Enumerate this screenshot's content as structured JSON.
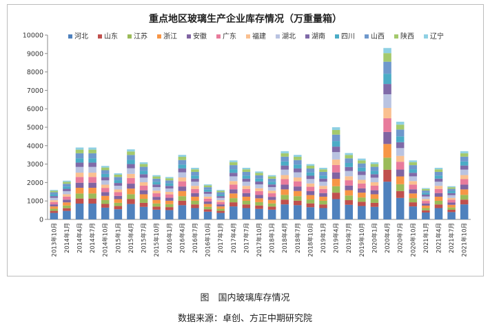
{
  "chart_data": {
    "type": "bar",
    "stacked": true,
    "title": "重点地区玻璃生产企业库存情况（万重量箱）",
    "ylim": [
      0,
      10000
    ],
    "yticks": [
      0,
      1000,
      2000,
      3000,
      4000,
      5000,
      6000,
      7000,
      8000,
      9000,
      10000
    ],
    "grid": false,
    "legend_position": "top",
    "x": [
      "2013年10月",
      "2014年1月",
      "2014年4月",
      "2014年7月",
      "2014年10月",
      "2015年1月",
      "2015年4月",
      "2015年7月",
      "2015年10月",
      "2016年1月",
      "2016年4月",
      "2016年7月",
      "2016年10月",
      "2017年1月",
      "2017年4月",
      "2017年7月",
      "2017年10月",
      "2018年1月",
      "2018年4月",
      "2018年7月",
      "2018年10月",
      "2019年1月",
      "2019年4月",
      "2019年7月",
      "2019年10月",
      "2020年1月",
      "2020年4月",
      "2020年7月",
      "2020年10月",
      "2021年1月",
      "2021年4月",
      "2021年7月",
      "2021年10月"
    ],
    "total_series": [
      1600,
      2100,
      3900,
      3900,
      2900,
      2500,
      3800,
      3100,
      2400,
      2300,
      3500,
      2800,
      1900,
      1600,
      3200,
      2800,
      2600,
      2400,
      3700,
      3500,
      3000,
      2800,
      5000,
      3600,
      3300,
      3100,
      9300,
      5300,
      3200,
      1700,
      2800,
      1800,
      3700
    ],
    "series": [
      {
        "name": "河北",
        "color": "#4f81bd",
        "share": 0.22
      },
      {
        "name": "山东",
        "color": "#c0504d",
        "share": 0.07
      },
      {
        "name": "江苏",
        "color": "#9bbb59",
        "share": 0.07
      },
      {
        "name": "浙江",
        "color": "#f79646",
        "share": 0.08
      },
      {
        "name": "安徽",
        "color": "#8064a2",
        "share": 0.07
      },
      {
        "name": "广东",
        "color": "#e87b9c",
        "share": 0.08
      },
      {
        "name": "福建",
        "color": "#fac090",
        "share": 0.06
      },
      {
        "name": "湖北",
        "color": "#b9c3e1",
        "share": 0.08
      },
      {
        "name": "湖南",
        "color": "#7f6aa8",
        "share": 0.06
      },
      {
        "name": "四川",
        "color": "#4bacc6",
        "share": 0.06
      },
      {
        "name": "山西",
        "color": "#6f98cc",
        "share": 0.07
      },
      {
        "name": "陕西",
        "color": "#a4c96c",
        "share": 0.05
      },
      {
        "name": "辽宁",
        "color": "#8fd0e3",
        "share": 0.03
      }
    ]
  },
  "caption": "图　国内玻璃库存情况",
  "source": "数据来源：卓创、方正中期研究院"
}
